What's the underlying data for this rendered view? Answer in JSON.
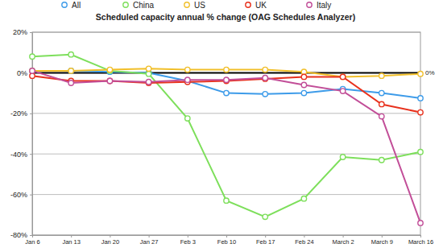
{
  "chart_data": {
    "type": "line",
    "title": "Scheduled capacity annual % change (OAG Schedules Analyzer)",
    "categories": [
      "Jan 6",
      "Jan 13",
      "Jan 20",
      "Jan 27",
      "Feb 3",
      "Feb 10",
      "Feb 17",
      "Feb 24",
      "March 2",
      "March 9",
      "March 16"
    ],
    "series": [
      {
        "name": "All",
        "color": "#3d9be9",
        "values": [
          1,
          1,
          0.5,
          0,
          -4,
          -10,
          -10.5,
          -10,
          -8,
          -10,
          -12.5
        ]
      },
      {
        "name": "China",
        "color": "#7ddf5b",
        "values": [
          8,
          9,
          1,
          -0.5,
          -22.5,
          -63,
          -71,
          -62,
          -41.5,
          -43,
          -39
        ]
      },
      {
        "name": "US",
        "color": "#f1bf2a",
        "values": [
          1,
          1,
          1.5,
          2,
          1.5,
          1.5,
          1.5,
          0.5,
          -2,
          -1.5,
          -0.5
        ]
      },
      {
        "name": "UK",
        "color": "#e8311d",
        "values": [
          -1.5,
          -4,
          -4,
          -5,
          -4.5,
          -4,
          -3,
          -2,
          -2,
          -15.5,
          -19.5
        ]
      },
      {
        "name": "Italy",
        "color": "#c24e98",
        "values": [
          1,
          -5,
          -4,
          -4.5,
          -3.5,
          -3.5,
          -2.5,
          -6,
          -9,
          -21.5,
          -74
        ]
      }
    ],
    "ylim": [
      -80,
      20
    ],
    "yticks": [
      {
        "value": -80,
        "label": "-80%"
      },
      {
        "value": -60,
        "label": "-60%"
      },
      {
        "value": -40,
        "label": "-40%"
      },
      {
        "value": -20,
        "label": "-20%"
      },
      {
        "value": 0,
        "label": "0%"
      },
      {
        "value": 20,
        "label": "20%"
      }
    ],
    "grid": true,
    "legend": "top",
    "marker": "circle",
    "annotations": [
      {
        "text": "0%",
        "y": 0
      }
    ]
  }
}
